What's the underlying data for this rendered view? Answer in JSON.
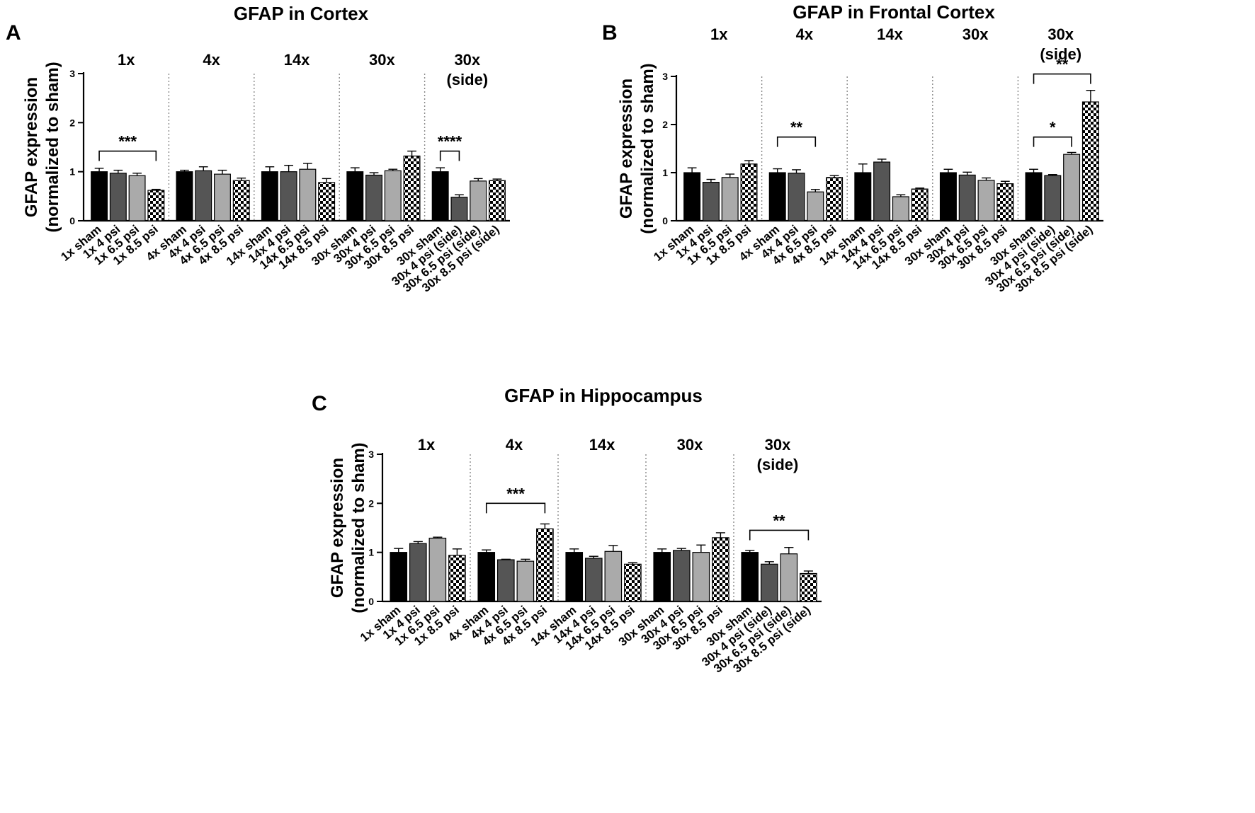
{
  "colors": {
    "sham": "#000000",
    "psi4": "#555555",
    "psi6_5": "#aaaaaa",
    "psi8_5_checker_dark": "#000000",
    "psi8_5_checker_light": "#ffffff",
    "divider": "#888888"
  },
  "chart_data": [
    {
      "type": "bar",
      "panel_letter": "A",
      "title": "GFAP in Cortex",
      "ylabel_line1": "GFAP expression",
      "ylabel_line2": "(normalized to sham)",
      "ylim": [
        0,
        3
      ],
      "yticks": [
        "0",
        "1",
        "2",
        "3"
      ],
      "groups": [
        {
          "label": "1x",
          "label2": ""
        },
        {
          "label": "4x",
          "label2": ""
        },
        {
          "label": "14x",
          "label2": ""
        },
        {
          "label": "30x",
          "label2": ""
        },
        {
          "label": "30x",
          "label2": "(side)"
        }
      ],
      "categories": [
        "1x sham",
        "1x 4 psi",
        "1x 6.5 psi",
        "1x 8.5 psi",
        "4x sham",
        "4x 4 psi",
        "4x 6.5 psi",
        "4x 8.5 psi",
        "14x sham",
        "14x 4 psi",
        "14x 6.5 psi",
        "14x 8.5 psi",
        "30x sham",
        "30x 4 psi",
        "30x 6.5 psi",
        "30x 8.5 psi",
        "30x sham",
        "30x 4 psi (side)",
        "30x 6.5 psi (side)",
        "30x 8.5 psi (side)"
      ],
      "values": [
        1.0,
        0.97,
        0.92,
        0.62,
        1.0,
        1.02,
        0.95,
        0.82,
        1.0,
        1.0,
        1.05,
        0.78,
        1.0,
        0.93,
        1.02,
        1.32,
        1.0,
        0.48,
        0.81,
        0.82
      ],
      "errors": [
        0.07,
        0.06,
        0.05,
        0.02,
        0.03,
        0.08,
        0.08,
        0.05,
        0.1,
        0.13,
        0.12,
        0.08,
        0.08,
        0.05,
        0.03,
        0.1,
        0.08,
        0.05,
        0.05,
        0.03
      ],
      "significance": [
        {
          "label": "***",
          "from": 0,
          "to": 3,
          "y": 1.42
        },
        {
          "label": "****",
          "from": 16,
          "to": 17,
          "y": 1.42
        }
      ]
    },
    {
      "type": "bar",
      "panel_letter": "B",
      "title": "GFAP in Frontal Cortex",
      "ylabel_line1": "GFAP expression",
      "ylabel_line2": "(normalized to sham)",
      "ylim": [
        0,
        3
      ],
      "yticks": [
        "0",
        "1",
        "2",
        "3"
      ],
      "groups": [
        {
          "label": "1x",
          "label2": ""
        },
        {
          "label": "4x",
          "label2": ""
        },
        {
          "label": "14x",
          "label2": ""
        },
        {
          "label": "30x",
          "label2": ""
        },
        {
          "label": "30x",
          "label2": "(side)"
        }
      ],
      "categories": [
        "1x sham",
        "1x 4 psi",
        "1x 6.5 psi",
        "1x 8.5 psi",
        "4x sham",
        "4x 4 psi",
        "4x 6.5 psi",
        "4x 8.5 psi",
        "14x sham",
        "14x 4 psi",
        "14x 6.5 psi",
        "14x 8.5 psi",
        "30x sham",
        "30x 4 psi",
        "30x 6.5 psi",
        "30x 8.5 psi",
        "30x sham",
        "30x 4 psi (side)",
        "30x 6.5 psi (side)",
        "30x 8.5 psi (side)"
      ],
      "values": [
        1.0,
        0.8,
        0.9,
        1.18,
        1.0,
        0.99,
        0.6,
        0.9,
        1.0,
        1.22,
        0.5,
        0.66,
        1.0,
        0.95,
        0.84,
        0.77,
        1.0,
        0.94,
        1.38,
        2.47
      ],
      "errors": [
        0.1,
        0.06,
        0.07,
        0.07,
        0.08,
        0.07,
        0.05,
        0.04,
        0.18,
        0.06,
        0.04,
        0.02,
        0.07,
        0.06,
        0.05,
        0.05,
        0.07,
        0.02,
        0.04,
        0.24
      ],
      "significance": [
        {
          "label": "**",
          "from": 4,
          "to": 6,
          "y": 1.74
        },
        {
          "label": "*",
          "from": 16,
          "to": 18,
          "y": 1.74
        },
        {
          "label": "**",
          "from": 16,
          "to": 19,
          "y": 3.05
        }
      ]
    },
    {
      "type": "bar",
      "panel_letter": "C",
      "title": "GFAP in Hippocampus",
      "ylabel_line1": "GFAP expression",
      "ylabel_line2": "(normalized to sham)",
      "ylim": [
        0,
        3
      ],
      "yticks": [
        "0",
        "1",
        "2",
        "3"
      ],
      "groups": [
        {
          "label": "1x",
          "label2": ""
        },
        {
          "label": "4x",
          "label2": ""
        },
        {
          "label": "14x",
          "label2": ""
        },
        {
          "label": "30x",
          "label2": ""
        },
        {
          "label": "30x",
          "label2": "(side)"
        }
      ],
      "categories": [
        "1x sham",
        "1x 4 psi",
        "1x 6.5 psi",
        "1x 8.5 psi",
        "4x sham",
        "4x 4 psi",
        "4x 6.5 psi",
        "4x 8.5 psi",
        "14x sham",
        "14x 4 psi",
        "14x 6.5 psi",
        "14x 8.5 psi",
        "30x sham",
        "30x 4 psi",
        "30x 6.5 psi",
        "30x 8.5 psi",
        "30x sham",
        "30x 4 psi (side)",
        "30x 6.5 psi (side)",
        "30x 8.5 psi (side)"
      ],
      "values": [
        1.0,
        1.18,
        1.29,
        0.94,
        1.0,
        0.85,
        0.82,
        1.48,
        1.0,
        0.88,
        1.02,
        0.76,
        1.0,
        1.04,
        1.0,
        1.3,
        1.0,
        0.76,
        0.97,
        0.57
      ],
      "errors": [
        0.08,
        0.04,
        0.02,
        0.13,
        0.05,
        0.01,
        0.04,
        0.1,
        0.07,
        0.04,
        0.12,
        0.03,
        0.07,
        0.04,
        0.15,
        0.1,
        0.04,
        0.05,
        0.13,
        0.05
      ],
      "significance": [
        {
          "label": "***",
          "from": 4,
          "to": 7,
          "y": 2.0
        },
        {
          "label": "**",
          "from": 16,
          "to": 19,
          "y": 1.45
        }
      ]
    }
  ]
}
